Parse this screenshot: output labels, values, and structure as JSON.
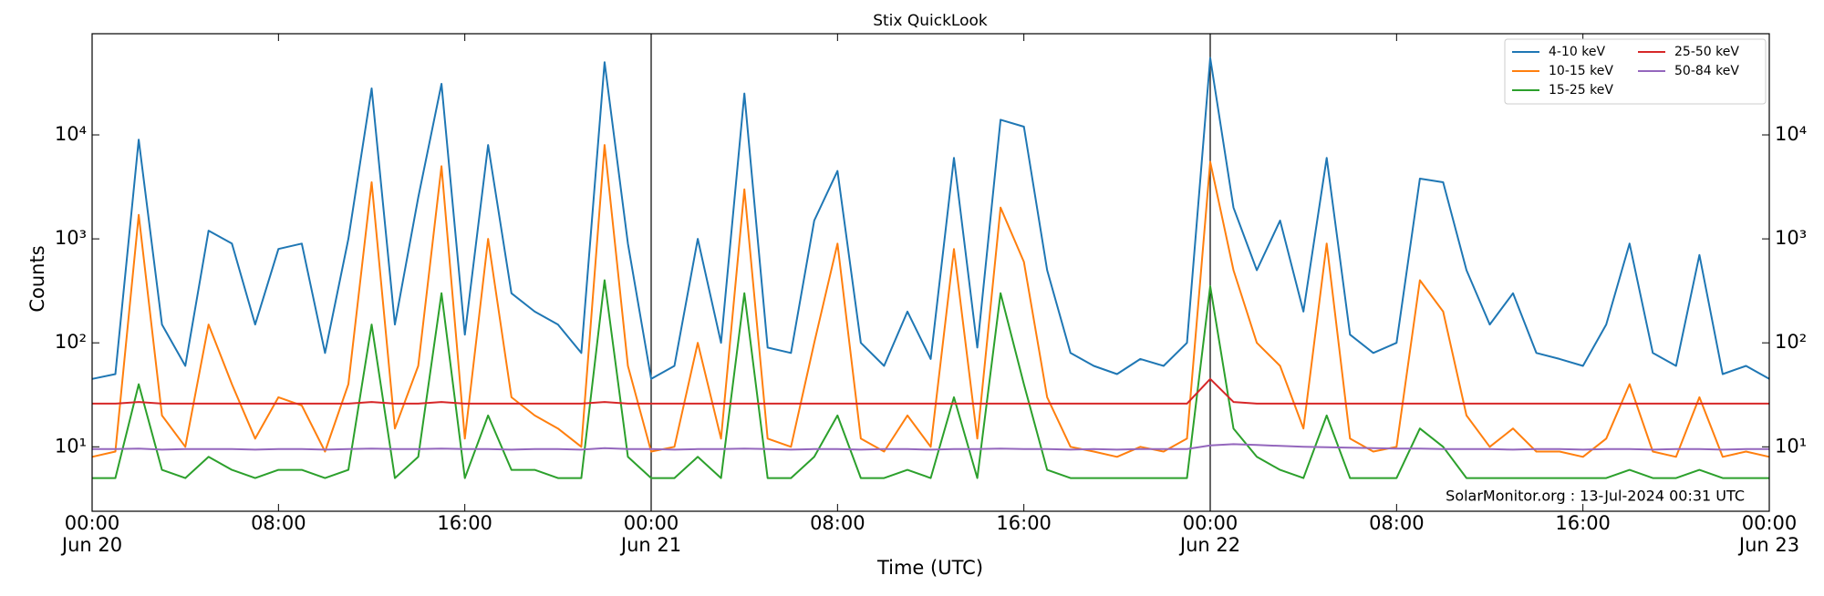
{
  "chart_data": {
    "type": "line",
    "title": "Stix QuickLook",
    "xlabel": "Time (UTC)",
    "ylabel": "Counts",
    "annotation": "SolarMonitor.org : 13-Jul-2024 00:31 UTC",
    "yscale": "log",
    "ylim": [
      2.4,
      94000
    ],
    "yticks": [
      {
        "value": 10,
        "label": "10¹"
      },
      {
        "value": 100,
        "label": "10²"
      },
      {
        "value": 1000,
        "label": "10³"
      },
      {
        "value": 10000,
        "label": "10⁴"
      }
    ],
    "xlim": [
      "Jun 20 00:00",
      "Jun 23 00:00"
    ],
    "xticks": [
      {
        "value": "Jun 20 00:00",
        "label": "00:00\nJun 20"
      },
      {
        "value": "Jun 20 08:00",
        "label": "08:00"
      },
      {
        "value": "Jun 20 16:00",
        "label": "16:00"
      },
      {
        "value": "Jun 21 00:00",
        "label": "00:00\nJun 21"
      },
      {
        "value": "Jun 21 08:00",
        "label": "08:00"
      },
      {
        "value": "Jun 21 16:00",
        "label": "16:00"
      },
      {
        "value": "Jun 22 00:00",
        "label": "00:00\nJun 22"
      },
      {
        "value": "Jun 22 08:00",
        "label": "08:00"
      },
      {
        "value": "Jun 22 16:00",
        "label": "16:00"
      },
      {
        "value": "Jun 23 00:00",
        "label": "00:00\nJun 23"
      }
    ],
    "day_separators": true,
    "legend": "upper right",
    "legend_columns": 2,
    "x": [
      "Jun 20 00:00",
      "Jun 20 01:00",
      "Jun 20 02:00",
      "Jun 20 03:00",
      "Jun 20 04:00",
      "Jun 20 05:00",
      "Jun 20 06:00",
      "Jun 20 07:00",
      "Jun 20 08:00",
      "Jun 20 09:00",
      "Jun 20 10:00",
      "Jun 20 11:00",
      "Jun 20 12:00",
      "Jun 20 13:00",
      "Jun 20 14:00",
      "Jun 20 15:00",
      "Jun 20 16:00",
      "Jun 20 17:00",
      "Jun 20 18:00",
      "Jun 20 19:00",
      "Jun 20 20:00",
      "Jun 20 21:00",
      "Jun 20 22:00",
      "Jun 20 23:00",
      "Jun 21 00:00",
      "Jun 21 01:00",
      "Jun 21 02:00",
      "Jun 21 03:00",
      "Jun 21 04:00",
      "Jun 21 05:00",
      "Jun 21 06:00",
      "Jun 21 07:00",
      "Jun 21 08:00",
      "Jun 21 09:00",
      "Jun 21 10:00",
      "Jun 21 11:00",
      "Jun 21 12:00",
      "Jun 21 13:00",
      "Jun 21 14:00",
      "Jun 21 15:00",
      "Jun 21 16:00",
      "Jun 21 17:00",
      "Jun 21 18:00",
      "Jun 21 19:00",
      "Jun 21 20:00",
      "Jun 21 21:00",
      "Jun 21 22:00",
      "Jun 21 23:00",
      "Jun 22 00:00",
      "Jun 22 01:00",
      "Jun 22 02:00",
      "Jun 22 03:00",
      "Jun 22 04:00",
      "Jun 22 05:00",
      "Jun 22 06:00",
      "Jun 22 07:00",
      "Jun 22 08:00",
      "Jun 22 09:00",
      "Jun 22 10:00",
      "Jun 22 11:00",
      "Jun 22 12:00",
      "Jun 22 13:00",
      "Jun 22 14:00",
      "Jun 22 15:00",
      "Jun 22 16:00",
      "Jun 22 17:00",
      "Jun 22 18:00",
      "Jun 22 19:00",
      "Jun 22 20:00",
      "Jun 22 21:00",
      "Jun 22 22:00",
      "Jun 22 23:00",
      "Jun 23 00:00"
    ],
    "series": [
      {
        "name": "4-10 keV",
        "color": "#1f77b4",
        "values": [
          45,
          50,
          9000,
          150,
          60,
          1200,
          900,
          150,
          800,
          900,
          80,
          1000,
          28000,
          150,
          2500,
          31000,
          120,
          8000,
          300,
          200,
          150,
          80,
          50000,
          900,
          45,
          60,
          1000,
          100,
          25000,
          90,
          80,
          1500,
          4500,
          100,
          60,
          200,
          70,
          6000,
          90,
          14000,
          12000,
          500,
          80,
          60,
          50,
          70,
          60,
          100,
          55000,
          2000,
          500,
          1500,
          200,
          6000,
          120,
          80,
          100,
          3800,
          3500,
          500,
          150,
          300,
          80,
          70,
          60,
          150,
          900,
          80,
          60,
          700,
          50,
          60,
          45
        ]
      },
      {
        "name": "10-15 keV",
        "color": "#ff7f0e",
        "values": [
          8,
          9,
          1700,
          20,
          10,
          150,
          40,
          12,
          30,
          25,
          9,
          40,
          3500,
          15,
          60,
          5000,
          12,
          1000,
          30,
          20,
          15,
          10,
          8000,
          60,
          9,
          10,
          100,
          12,
          3000,
          12,
          10,
          100,
          900,
          12,
          9,
          20,
          10,
          800,
          12,
          2000,
          600,
          30,
          10,
          9,
          8,
          10,
          9,
          12,
          5500,
          500,
          100,
          60,
          15,
          900,
          12,
          9,
          10,
          400,
          200,
          20,
          10,
          15,
          9,
          9,
          8,
          12,
          40,
          9,
          8,
          30,
          8,
          9,
          8
        ]
      },
      {
        "name": "15-25 keV",
        "color": "#2ca02c",
        "values": [
          5,
          5,
          40,
          6,
          5,
          8,
          6,
          5,
          6,
          6,
          5,
          6,
          150,
          5,
          8,
          300,
          5,
          20,
          6,
          6,
          5,
          5,
          400,
          8,
          5,
          5,
          8,
          5,
          300,
          5,
          5,
          8,
          20,
          5,
          5,
          6,
          5,
          30,
          5,
          300,
          40,
          6,
          5,
          5,
          5,
          5,
          5,
          5,
          350,
          15,
          8,
          6,
          5,
          20,
          5,
          5,
          5,
          15,
          10,
          5,
          5,
          5,
          5,
          5,
          5,
          5,
          6,
          5,
          5,
          6,
          5,
          5,
          5
        ]
      },
      {
        "name": "25-50 keV",
        "color": "#d62728",
        "values": [
          26,
          26,
          27,
          26,
          26,
          26,
          26,
          26,
          26,
          26,
          26,
          26,
          27,
          26,
          26,
          27,
          26,
          26,
          26,
          26,
          26,
          26,
          27,
          26,
          26,
          26,
          26,
          26,
          26,
          26,
          26,
          26,
          26,
          26,
          26,
          26,
          26,
          26,
          26,
          26,
          26,
          26,
          26,
          26,
          26,
          26,
          26,
          26,
          45,
          27,
          26,
          26,
          26,
          26,
          26,
          26,
          26,
          26,
          26,
          26,
          26,
          26,
          26,
          26,
          26,
          26,
          26,
          26,
          26,
          26,
          26,
          26,
          26
        ]
      },
      {
        "name": "50-84 keV",
        "color": "#9467bd",
        "values": [
          9.5,
          9.5,
          9.6,
          9.4,
          9.5,
          9.5,
          9.5,
          9.4,
          9.5,
          9.5,
          9.4,
          9.5,
          9.6,
          9.5,
          9.5,
          9.6,
          9.5,
          9.5,
          9.4,
          9.5,
          9.5,
          9.4,
          9.7,
          9.5,
          9.5,
          9.4,
          9.5,
          9.5,
          9.6,
          9.5,
          9.4,
          9.5,
          9.5,
          9.4,
          9.5,
          9.5,
          9.4,
          9.5,
          9.5,
          9.6,
          9.5,
          9.5,
          9.4,
          9.5,
          9.4,
          9.5,
          9.5,
          9.5,
          10.3,
          10.6,
          10.4,
          10.2,
          10,
          9.9,
          9.8,
          9.7,
          9.6,
          9.6,
          9.5,
          9.5,
          9.5,
          9.4,
          9.5,
          9.5,
          9.4,
          9.5,
          9.5,
          9.4,
          9.5,
          9.5,
          9.4,
          9.5,
          9.5
        ]
      }
    ]
  }
}
